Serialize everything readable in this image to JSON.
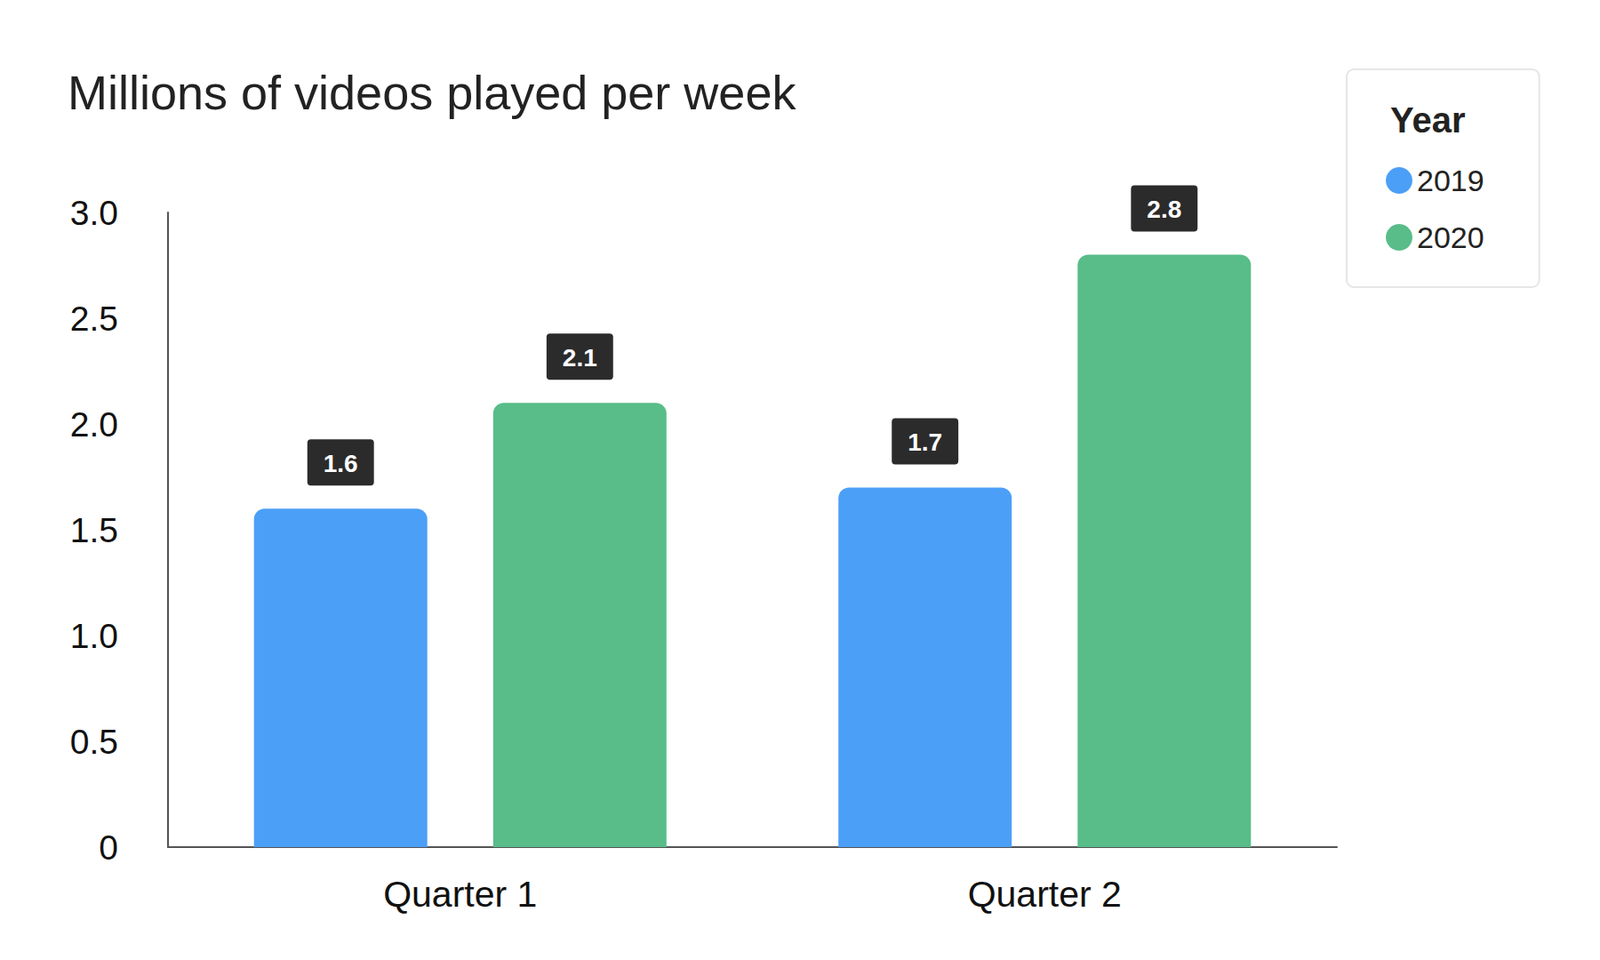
{
  "chart_data": {
    "type": "bar",
    "title": "Millions of videos played per week",
    "legend_title": "Year",
    "categories": [
      "Quarter 1",
      "Quarter 2"
    ],
    "series": [
      {
        "name": "2019",
        "color": "#4c9ff7",
        "values": [
          1.6,
          1.7
        ]
      },
      {
        "name": "2020",
        "color": "#58bd89",
        "values": [
          2.1,
          2.8
        ]
      }
    ],
    "ylim": [
      0,
      3
    ],
    "yticks": [
      0,
      0.5,
      {
        "value": 1,
        "label": "1.0"
      },
      1.5,
      {
        "value": 2,
        "label": "2.0"
      },
      2.5,
      {
        "value": 3,
        "label": "3.0"
      }
    ],
    "grid": false,
    "legend": "top-right",
    "data_labels": true
  }
}
